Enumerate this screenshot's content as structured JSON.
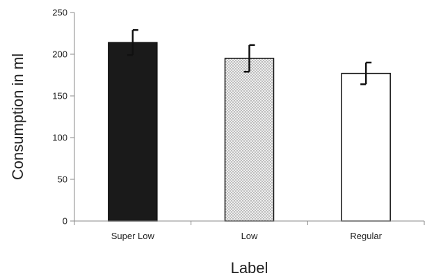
{
  "chart_data": {
    "type": "bar",
    "categories": [
      "Super Low",
      "Low",
      "Regular"
    ],
    "values": [
      214,
      195,
      177
    ],
    "error": [
      15,
      16,
      13
    ],
    "fills": [
      "solid-black",
      "dotted-gray",
      "white"
    ],
    "xlabel": "Label",
    "ylabel": "Consumption in ml",
    "ylim": [
      0,
      250
    ],
    "yticks": [
      0,
      50,
      100,
      150,
      200,
      250
    ],
    "grid": false,
    "legend": "none"
  }
}
